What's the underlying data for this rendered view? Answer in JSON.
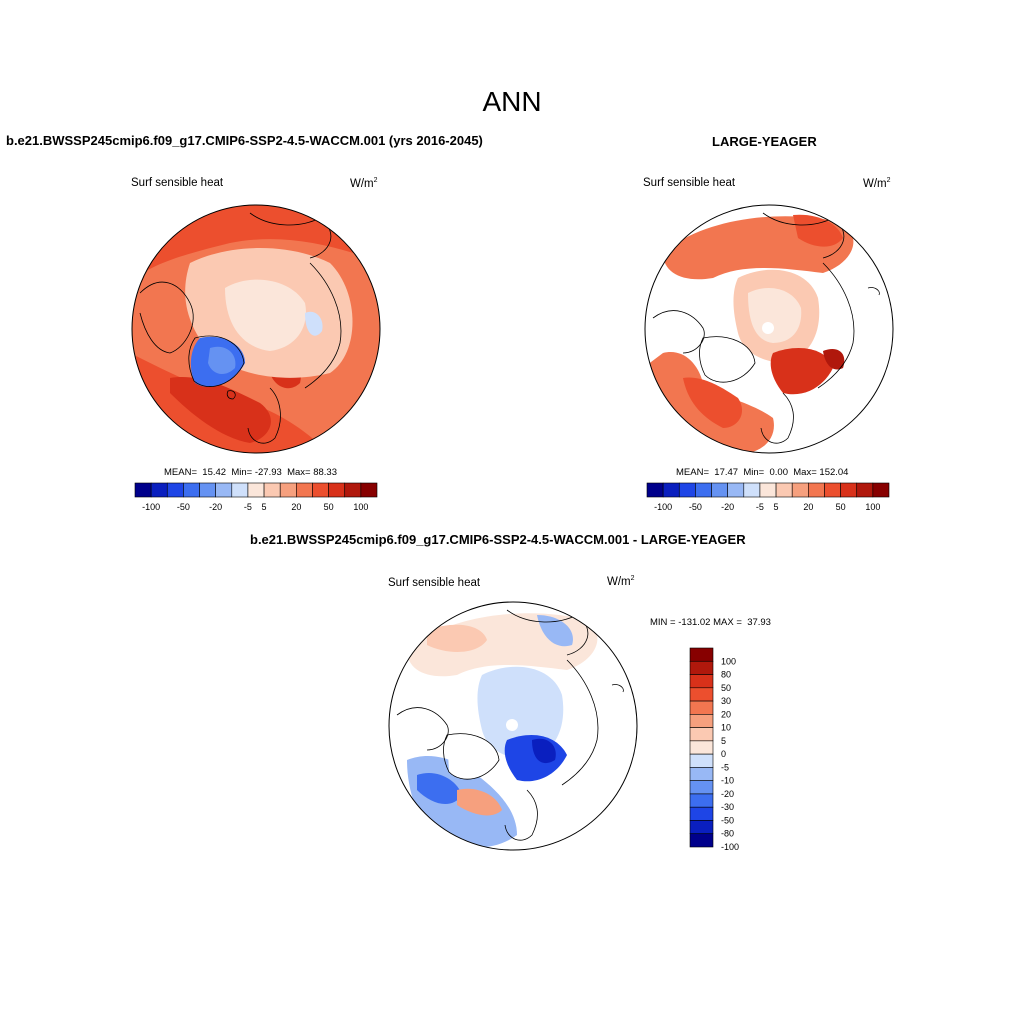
{
  "figure": {
    "title": "ANN",
    "panel1_title": "b.e21.BWSSP245cmip6.f09_g17.CMIP6-SSP2-4.5-WACCM.001 (yrs 2016-2045)",
    "panel2_title": "LARGE-YEAGER",
    "panel3_title": "b.e21.BWSSP245cmip6.f09_g17.CMIP6-SSP2-4.5-WACCM.001 - LARGE-YEAGER"
  },
  "chart_data": [
    {
      "type": "heatmap",
      "projection": "north-polar-stereographic",
      "variable": "Surf sensible heat",
      "units_base": "W/m",
      "units_exp": "2",
      "stats": {
        "mean_label": "MEAN=",
        "mean": "15.42",
        "min_label": "Min=",
        "min": "-27.93",
        "max_label": "Max=",
        "max": "88.33"
      },
      "colorbar": {
        "orientation": "horizontal",
        "ticks": [
          "-100",
          "-50",
          "-20",
          "-5",
          "5",
          "20",
          "50",
          "100"
        ],
        "levels": [
          -100,
          -80,
          -50,
          -30,
          -20,
          -10,
          -5,
          0,
          5,
          10,
          20,
          30,
          50,
          80,
          100
        ]
      }
    },
    {
      "type": "heatmap",
      "projection": "north-polar-stereographic",
      "variable": "Surf sensible heat",
      "units_base": "W/m",
      "units_exp": "2",
      "stats": {
        "mean_label": "MEAN=",
        "mean": "17.47",
        "min_label": "Min=",
        "min": "0.00",
        "max_label": "Max=",
        "max": "152.04"
      },
      "colorbar": {
        "orientation": "horizontal",
        "ticks": [
          "-100",
          "-50",
          "-20",
          "-5",
          "5",
          "20",
          "50",
          "100"
        ],
        "levels": [
          -100,
          -80,
          -50,
          -30,
          -20,
          -10,
          -5,
          0,
          5,
          10,
          20,
          30,
          50,
          80,
          100
        ]
      }
    },
    {
      "type": "heatmap",
      "projection": "north-polar-stereographic",
      "variable": "Surf sensible heat",
      "units_base": "W/m",
      "units_exp": "2",
      "stats": {
        "min_label": "MIN =",
        "min": "-131.02",
        "max_label": "MAX =",
        "max": "37.93"
      },
      "colorbar": {
        "orientation": "vertical",
        "ticks": [
          "100",
          "80",
          "50",
          "30",
          "20",
          "10",
          "5",
          "0",
          "-5",
          "-10",
          "-20",
          "-30",
          "-50",
          "-80",
          "-100"
        ],
        "levels": [
          100,
          80,
          50,
          30,
          20,
          10,
          5,
          0,
          -5,
          -10,
          -20,
          -30,
          -50,
          -80,
          -100
        ]
      }
    }
  ],
  "palette": [
    "#00008b",
    "#0a1fbf",
    "#1e45e6",
    "#3c6ef0",
    "#6592f2",
    "#98b8f5",
    "#cfe0fb",
    "#fbe6da",
    "#fbc9b2",
    "#f6a07e",
    "#f27650",
    "#ec4f2e",
    "#d8311a",
    "#b0180c",
    "#870000"
  ]
}
